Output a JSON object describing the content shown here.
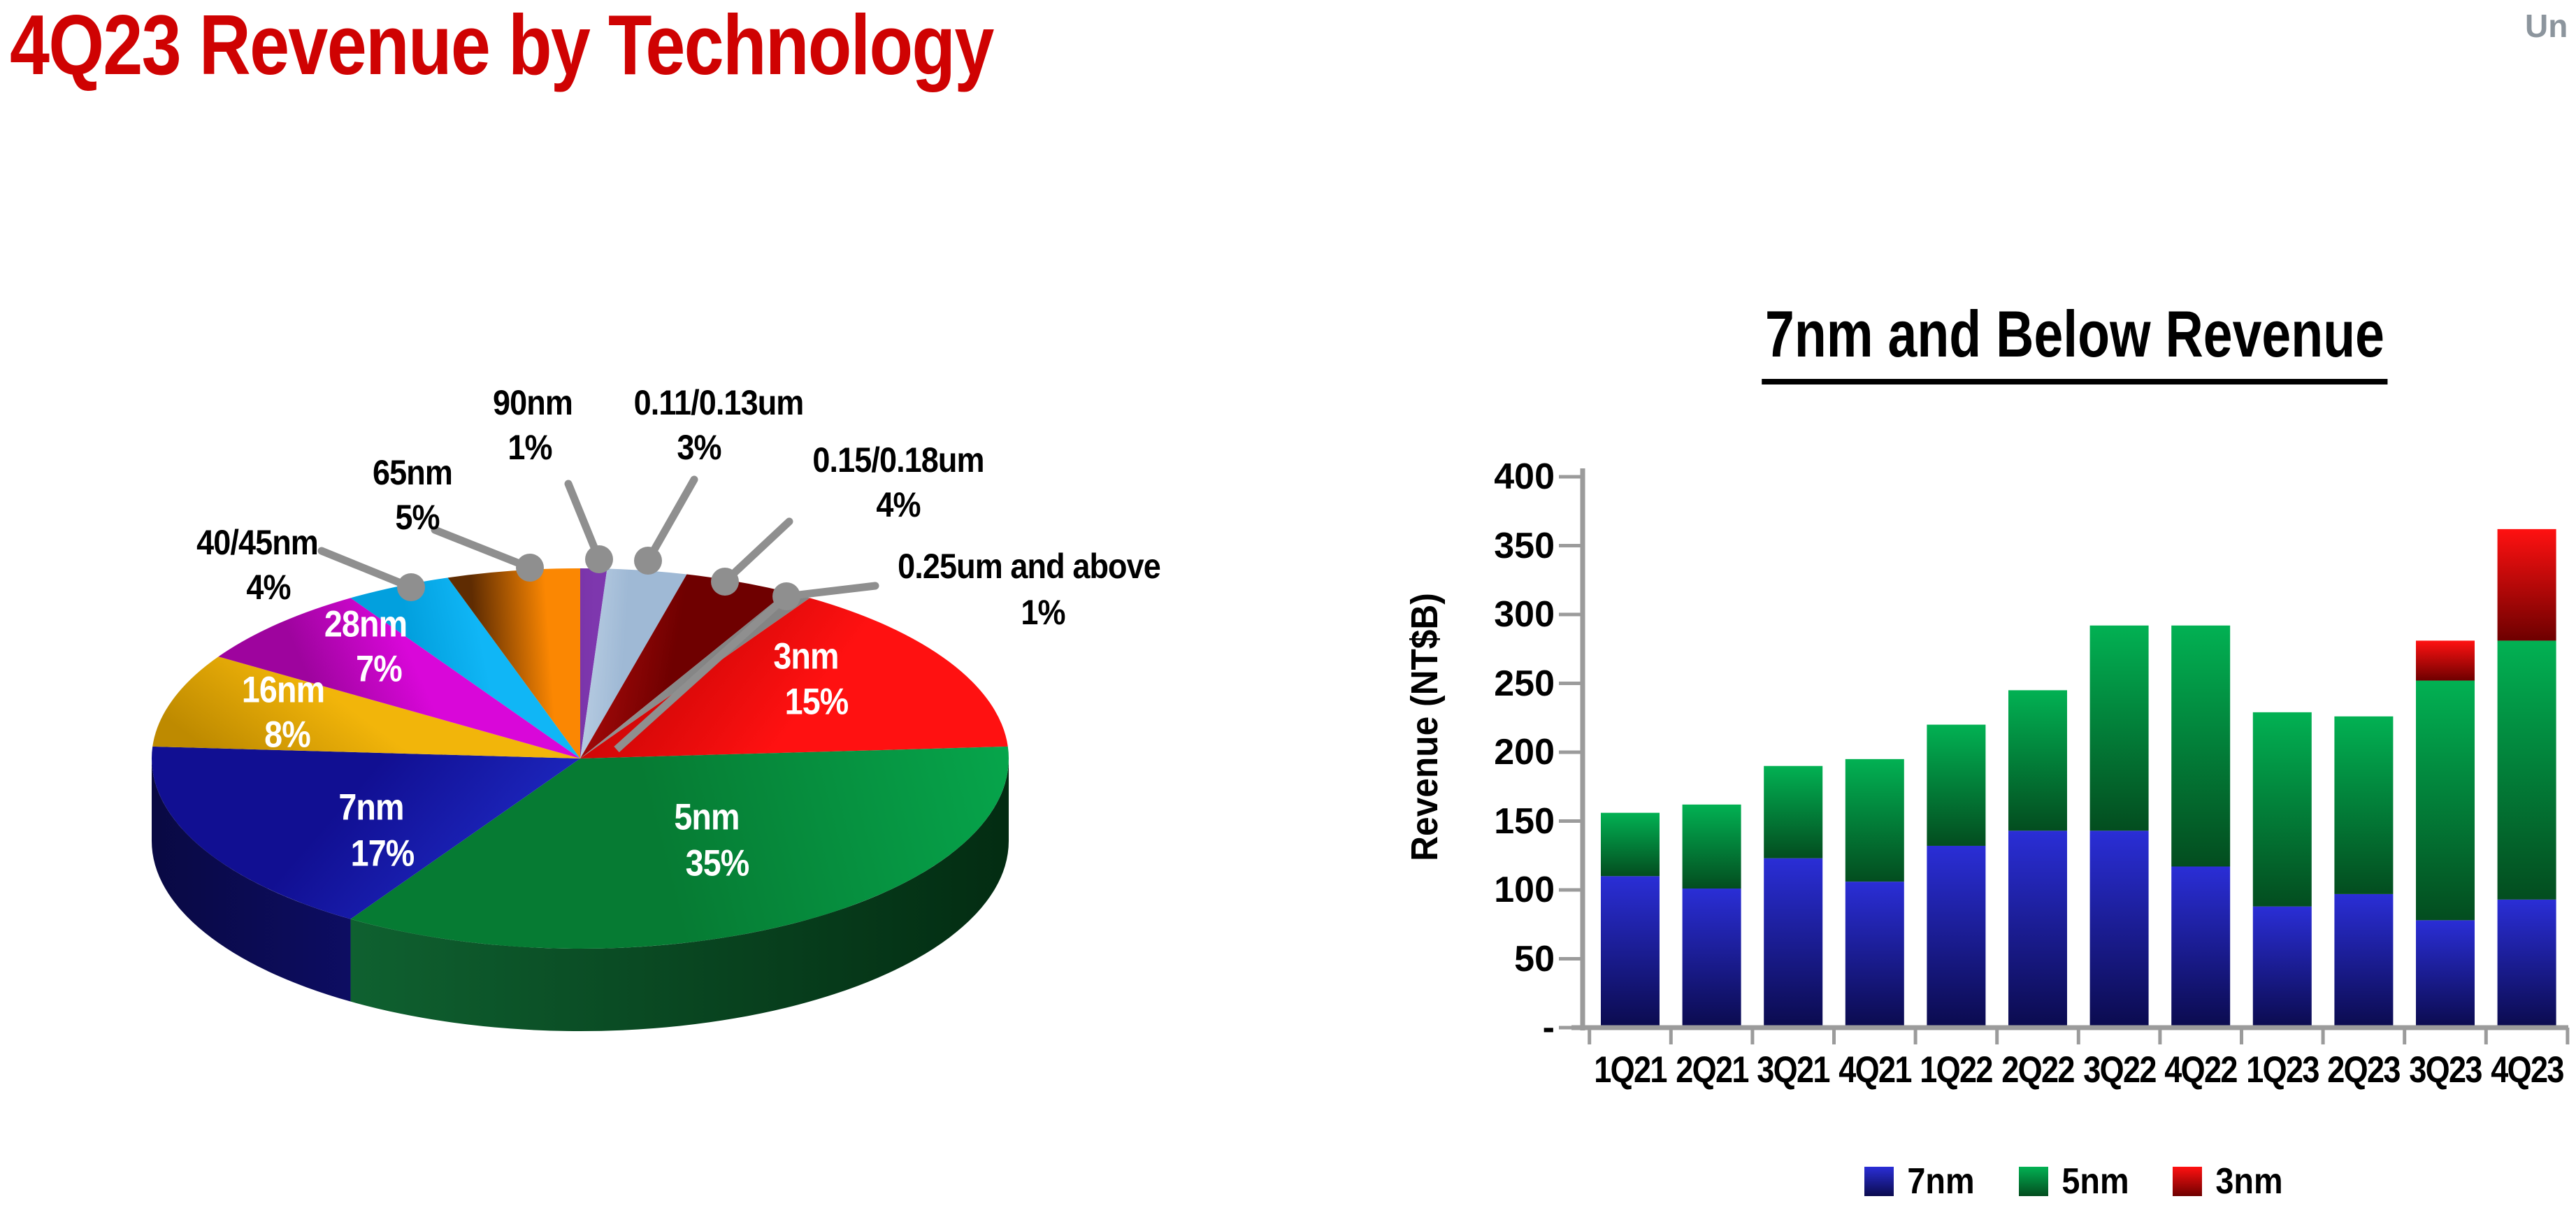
{
  "header": {
    "title": "4Q23 Revenue by Technology",
    "title_color": "#CF0202",
    "corner_text": "Un",
    "corner_color": "#8C959D"
  },
  "chart_data": [
    {
      "type": "pie",
      "title": "4Q23 Revenue by Technology",
      "unit": "%",
      "start_angle": "12 o'clock, clockwise",
      "slices": [
        {
          "id": "90nm",
          "label": "90nm",
          "pct_label": "1%",
          "value": 1,
          "color_start": "#6B2C99",
          "color_end": "#7E37AE",
          "text_color": "#000000",
          "placement": "outside"
        },
        {
          "id": "0.11/0.13um",
          "label": "0.11/0.13um",
          "pct_label": "3%",
          "value": 3,
          "color_start": "#C9DAEB",
          "color_end": "#9FB9D5",
          "text_color": "#000000",
          "placement": "outside"
        },
        {
          "id": "0.15/0.18um",
          "label": "0.15/0.18um",
          "pct_label": "4%",
          "value": 4,
          "color_start": "#9E0808",
          "color_end": "#6F0000",
          "text_color": "#000000",
          "placement": "outside"
        },
        {
          "id": "0.25um and above",
          "label": "0.25um and above",
          "pct_label": "1%",
          "value": 1,
          "color_start": "#909090",
          "color_end": "#848484",
          "text_color": "#000000",
          "placement": "outside"
        },
        {
          "id": "3nm",
          "label": "3nm",
          "pct_label": "15%",
          "value": 15,
          "color_start": "#BB0202",
          "color_end": "#FF1111",
          "text_color": "#FFFFFF",
          "placement": "inside"
        },
        {
          "id": "5nm",
          "label": "5nm",
          "pct_label": "35%",
          "value": 35,
          "color_start": "#06AC4F",
          "color_end": "#067B33",
          "rim_start": "#032C12",
          "rim_end": "#0F6130",
          "text_color": "#FFFFFF",
          "placement": "inside"
        },
        {
          "id": "7nm",
          "label": "7nm",
          "pct_label": "17%",
          "value": 17,
          "color_start": "#2231D2",
          "color_end": "#110F92",
          "rim_start": "#0D0D62",
          "rim_end": "#090943",
          "text_color": "#FFFFFF",
          "placement": "inside"
        },
        {
          "id": "16nm",
          "label": "16nm",
          "pct_label": "8%",
          "value": 8,
          "color_start": "#BE8A00",
          "color_end": "#F2B50A",
          "text_color": "#FFFFFF",
          "placement": "inside"
        },
        {
          "id": "28nm",
          "label": "28nm",
          "pct_label": "7%",
          "value": 7,
          "color_start": "#9E049E",
          "color_end": "#D907D9",
          "text_color": "#FFFFFF",
          "placement": "inside"
        },
        {
          "id": "40/45nm",
          "label": "40/45nm",
          "pct_label": "4%",
          "value": 4,
          "color_start": "#02A0DE",
          "color_end": "#10B6F6",
          "text_color": "#000000",
          "placement": "outside"
        },
        {
          "id": "65nm",
          "label": "65nm",
          "pct_label": "5%",
          "value": 5,
          "color_start": "#5F2C02",
          "color_end": "#FB8702",
          "text_color": "#000000",
          "placement": "outside"
        }
      ],
      "leader_color": "#8F8F8F"
    },
    {
      "type": "bar",
      "stacked": true,
      "title": "7nm and Below Revenue",
      "ylabel": "Revenue (NT$B)",
      "xlabel": "",
      "ylim": [
        0,
        400
      ],
      "y_tick_step": 50,
      "y_tick_labels": [
        "400",
        "350",
        "300",
        "250",
        "200",
        "150",
        "100",
        "50",
        "-"
      ],
      "grid": false,
      "axis_color": "#9B9B9B",
      "categories": [
        "1Q21",
        "2Q21",
        "3Q21",
        "4Q21",
        "1Q22",
        "2Q22",
        "3Q22",
        "4Q22",
        "1Q23",
        "2Q23",
        "3Q23",
        "4Q23"
      ],
      "series": [
        {
          "name": "7nm",
          "color_top": "#2A2ED6",
          "color_bottom": "#0B0B4E",
          "values": [
            110,
            101,
            123,
            106,
            132,
            143,
            143,
            117,
            88,
            97,
            78,
            93
          ]
        },
        {
          "name": "5nm",
          "color_top": "#02B153",
          "color_bottom": "#034D1F",
          "values": [
            46,
            61,
            67,
            89,
            88,
            102,
            149,
            175,
            141,
            129,
            174,
            188
          ]
        },
        {
          "name": "3nm",
          "color_top": "#FF1111",
          "color_bottom": "#6E0000",
          "values": [
            0,
            0,
            0,
            0,
            0,
            0,
            0,
            0,
            0,
            0,
            29,
            81
          ]
        }
      ],
      "legend": [
        "7nm",
        "5nm",
        "3nm"
      ],
      "legend_position": "bottom"
    }
  ]
}
